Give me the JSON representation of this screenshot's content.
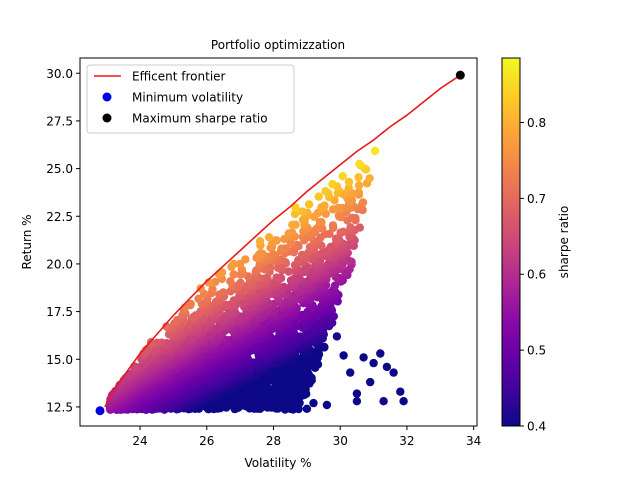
{
  "chart_data": {
    "type": "scatter",
    "title": "Portfolio optimizzation",
    "xlabel": "Volatility %",
    "ylabel": "Return %",
    "xlim": [
      22.2,
      34.1
    ],
    "ylim": [
      11.5,
      30.8
    ],
    "xticks": [
      24,
      26,
      28,
      30,
      32,
      34
    ],
    "yticks": [
      12.5,
      15.0,
      17.5,
      20.0,
      22.5,
      25.0,
      27.5,
      30.0
    ],
    "xtick_labels": [
      "24",
      "26",
      "28",
      "30",
      "32",
      "34"
    ],
    "ytick_labels": [
      "12.5",
      "15.0",
      "17.5",
      "20.0",
      "22.5",
      "25.0",
      "27.5",
      "30.0"
    ],
    "colorbar": {
      "label": "sharpe ratio",
      "range": [
        0.4,
        0.885
      ],
      "ticks": [
        0.4,
        0.5,
        0.6,
        0.7,
        0.8
      ],
      "tick_labels": [
        "0.4",
        "0.5",
        "0.6",
        "0.7",
        "0.8"
      ],
      "colormap": "plasma"
    },
    "legend": {
      "placement": "top-left",
      "entries": [
        "Efficent frontier",
        "Minimum volatility",
        "Maximum sharpe ratio"
      ]
    },
    "frontier": {
      "name": "Efficent frontier",
      "color": "#e8191b",
      "x": [
        22.95,
        23.1,
        23.5,
        24.0,
        24.5,
        25.0,
        25.5,
        26.0,
        26.5,
        27.0,
        27.5,
        28.0,
        28.5,
        29.0,
        29.5,
        30.0,
        30.5,
        31.0,
        31.5,
        32.0,
        32.5,
        33.0,
        33.6
      ],
      "y": [
        12.5,
        13.1,
        14.1,
        15.3,
        16.3,
        17.3,
        18.2,
        19.1,
        19.9,
        20.7,
        21.5,
        22.3,
        23.0,
        23.8,
        24.5,
        25.2,
        25.9,
        26.5,
        27.2,
        27.8,
        28.5,
        29.2,
        29.9
      ]
    },
    "min_volatility": {
      "name": "Minimum volatility",
      "x": 22.8,
      "y": 12.3,
      "color": "#0000e6"
    },
    "max_sharpe": {
      "name": "Maximum sharpe ratio",
      "x": 33.6,
      "y": 29.9,
      "color": "#000000"
    },
    "point_cloud": {
      "count": 3000,
      "sharpe_range": [
        0.4,
        0.885
      ],
      "outliers": [
        {
          "x": 31.8,
          "y": 13.3
        },
        {
          "x": 31.9,
          "y": 12.8
        },
        {
          "x": 31.6,
          "y": 14.3
        },
        {
          "x": 31.4,
          "y": 14.6
        },
        {
          "x": 31.2,
          "y": 15.3
        },
        {
          "x": 31.3,
          "y": 12.8
        },
        {
          "x": 30.9,
          "y": 13.8
        },
        {
          "x": 30.5,
          "y": 13.2
        },
        {
          "x": 30.5,
          "y": 12.8
        },
        {
          "x": 30.3,
          "y": 14.3
        },
        {
          "x": 30.1,
          "y": 15.2
        },
        {
          "x": 29.9,
          "y": 16.2
        },
        {
          "x": 29.7,
          "y": 17.7
        },
        {
          "x": 29.5,
          "y": 18.2
        },
        {
          "x": 29.3,
          "y": 19.2
        },
        {
          "x": 29.2,
          "y": 12.7
        },
        {
          "x": 29.0,
          "y": 12.4
        },
        {
          "x": 29.6,
          "y": 12.6
        },
        {
          "x": 31.0,
          "y": 14.8
        },
        {
          "x": 30.7,
          "y": 15.1
        }
      ]
    }
  }
}
